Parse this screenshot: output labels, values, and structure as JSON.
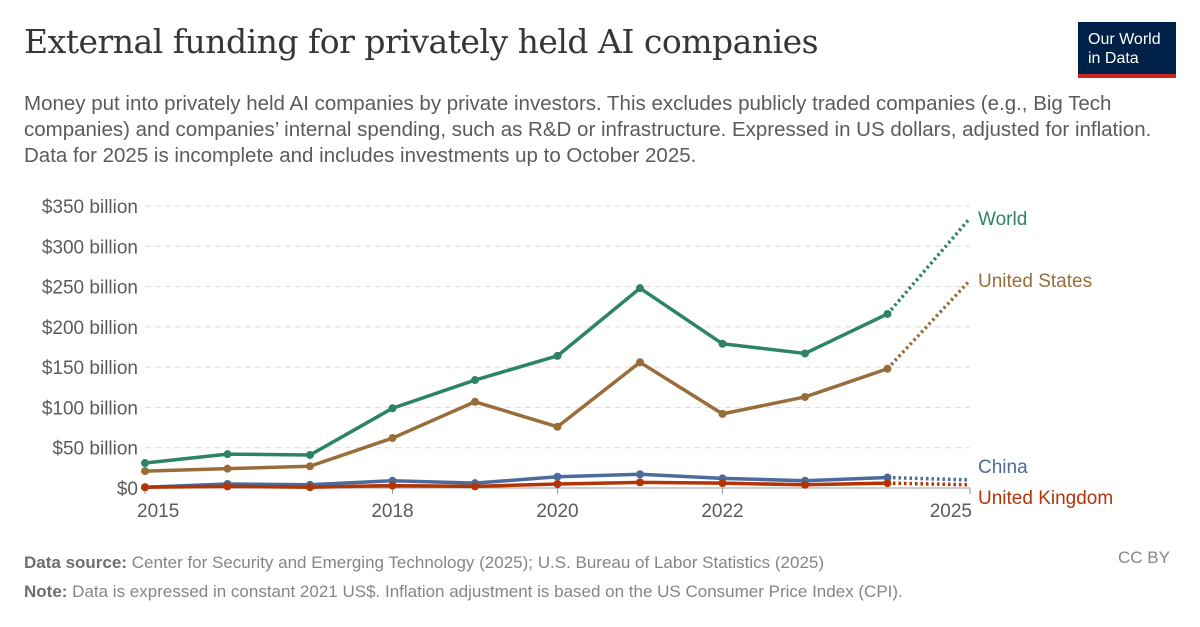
{
  "title": "External funding for privately held AI companies",
  "subtitle": "Money put into privately held AI companies by private investors. This excludes publicly traded companies (e.g., Big Tech companies) and companies’ internal spending, such as R&D or infrastructure. Expressed in US dollars, adjusted for inflation. Data for 2025 is incomplete and includes investments up to October 2025.",
  "logo": {
    "line1": "Our World",
    "line2": "in Data"
  },
  "footer": {
    "source_label": "Data source:",
    "source": " Center for Security and Emerging Technology (2025); U.S. Bureau of Labor Statistics (2025)",
    "note_label": "Note:",
    "note": " Data is expressed in constant 2021 US$. Inflation adjustment is based on the US Consumer Price Index (CPI).",
    "license": "CC BY"
  },
  "chart_data": {
    "type": "line",
    "x": [
      2015,
      2016,
      2017,
      2018,
      2019,
      2020,
      2021,
      2022,
      2023,
      2024,
      2025
    ],
    "xticks": [
      {
        "v": 2015,
        "label": "2015"
      },
      {
        "v": 2018,
        "label": "2018"
      },
      {
        "v": 2020,
        "label": "2020"
      },
      {
        "v": 2022,
        "label": "2022"
      },
      {
        "v": 2025,
        "label": "2025"
      }
    ],
    "yticks": [
      {
        "v": 0,
        "label": "$0"
      },
      {
        "v": 50,
        "label": "$50 billion"
      },
      {
        "v": 100,
        "label": "$100 billion"
      },
      {
        "v": 150,
        "label": "$150 billion"
      },
      {
        "v": 200,
        "label": "$200 billion"
      },
      {
        "v": 250,
        "label": "$250 billion"
      },
      {
        "v": 300,
        "label": "$300 billion"
      },
      {
        "v": 350,
        "label": "$350 billion"
      }
    ],
    "ylim": [
      0,
      350
    ],
    "xlim": [
      2015,
      2025
    ],
    "grid": "horizontal dashed",
    "incomplete_year": 2025,
    "unit": "billion US$",
    "series": [
      {
        "name": "World",
        "color": "#2c8465",
        "values": [
          31,
          42,
          41,
          99,
          134,
          164,
          248,
          179,
          167,
          216,
          335
        ]
      },
      {
        "name": "United States",
        "color": "#996d39",
        "values": [
          21,
          24,
          27,
          62,
          107,
          76,
          156,
          92,
          113,
          148,
          258
        ]
      },
      {
        "name": "China",
        "color": "#4c6a9c",
        "values": [
          1,
          5,
          4,
          9,
          6,
          14,
          17,
          12,
          9,
          13,
          10
        ]
      },
      {
        "name": "United Kingdom",
        "color": "#b13507",
        "values": [
          1,
          2,
          1,
          3,
          2,
          5,
          7,
          6,
          4,
          6,
          4
        ]
      }
    ]
  }
}
